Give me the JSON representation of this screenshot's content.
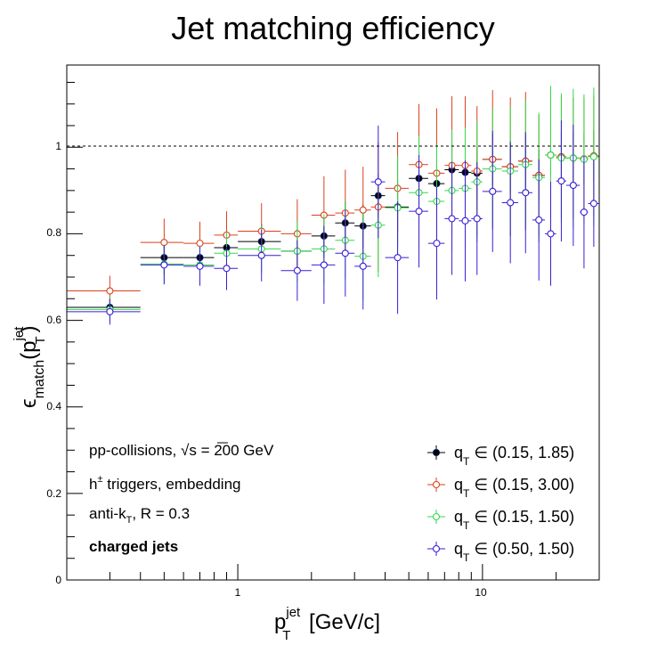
{
  "chart_data": {
    "type": "scatter",
    "title": "Jet matching efficiency",
    "x_axis": {
      "label_main": "p",
      "label_sub": "T",
      "label_sup": "jet",
      "label_unit": " [GeV/c]",
      "scale": "log",
      "range": [
        0.2,
        30
      ],
      "tick_labels": [
        "1",
        "10"
      ],
      "tick_values": [
        1,
        10
      ]
    },
    "y_axis": {
      "label_prefix": "ϵ",
      "label_sub": "match",
      "label_paren_open": "(p",
      "label_inner_sub": "T",
      "label_sup": "jet",
      "label_paren_close": ")",
      "range": [
        0,
        1.19
      ],
      "tick_labels": [
        "0",
        "0.2",
        "0.4",
        "0.6",
        "0.8",
        "1"
      ],
      "tick_values": [
        0,
        0.2,
        0.4,
        0.6,
        0.8,
        1
      ]
    },
    "reference_line_y": 1,
    "grid": false,
    "legend_position": "bottom-right",
    "annotations": {
      "line1_a": "pp-collisions, ",
      "line1_sqrt": "√s",
      "line1_b": " = 200 GeV",
      "line2_a": "h",
      "line2_sup": "±",
      "line2_b": " triggers, embedding",
      "line3_a": "anti-k",
      "line3_sub": "T",
      "line3_b": ", R = 0.3",
      "line4": "charged jets"
    },
    "series": [
      {
        "name": "(0.15, 1.85)",
        "legend_q": "q",
        "legend_sub": "T",
        "legend_in": " ∈ ",
        "color": "#000000",
        "marker": "filled-circle",
        "points": [
          {
            "x": 0.3,
            "xlo": 0.2,
            "xhi": 0.4,
            "y": 0.63,
            "err": 0.02
          },
          {
            "x": 0.5,
            "xlo": 0.4,
            "xhi": 0.6,
            "y": 0.745,
            "err": 0.04
          },
          {
            "x": 0.7,
            "xlo": 0.6,
            "xhi": 0.8,
            "y": 0.745,
            "err": 0.04
          },
          {
            "x": 0.9,
            "xlo": 0.8,
            "xhi": 1.0,
            "y": 0.768,
            "err": 0.04
          },
          {
            "x": 1.25,
            "xlo": 1.0,
            "xhi": 1.5,
            "y": 0.782,
            "err": 0.04
          },
          {
            "x": 1.75,
            "xlo": 1.5,
            "xhi": 2.0,
            "y": 0.76,
            "err": 0.05
          },
          {
            "x": 2.25,
            "xlo": 2.0,
            "xhi": 2.5,
            "y": 0.795,
            "err": 0.05
          },
          {
            "x": 2.75,
            "xlo": 2.5,
            "xhi": 3.0,
            "y": 0.825,
            "err": 0.05
          },
          {
            "x": 3.25,
            "xlo": 3.0,
            "xhi": 3.5,
            "y": 0.818,
            "err": 0.05
          },
          {
            "x": 3.75,
            "xlo": 3.5,
            "xhi": 4.0,
            "y": 0.888,
            "err": 0.05
          },
          {
            "x": 4.5,
            "xlo": 4.0,
            "xhi": 5.0,
            "y": 0.862,
            "err": 0.06
          },
          {
            "x": 5.5,
            "xlo": 5.0,
            "xhi": 6.0,
            "y": 0.928,
            "err": 0.06
          },
          {
            "x": 6.5,
            "xlo": 6.0,
            "xhi": 7.0,
            "y": 0.916,
            "err": 0.06
          },
          {
            "x": 7.5,
            "xlo": 7.0,
            "xhi": 8.0,
            "y": 0.948,
            "err": 0.06
          },
          {
            "x": 8.5,
            "xlo": 8.0,
            "xhi": 9.0,
            "y": 0.942,
            "err": 0.06
          },
          {
            "x": 9.5,
            "xlo": 9.0,
            "xhi": 10.0,
            "y": 0.94,
            "err": 0.06
          },
          {
            "x": 11.0,
            "xlo": 10.0,
            "xhi": 12.0,
            "y": 0.972,
            "err": 0.06
          },
          {
            "x": 13.0,
            "xlo": 12.0,
            "xhi": 14.0,
            "y": 0.955,
            "err": 0.06
          },
          {
            "x": 15.0,
            "xlo": 14.0,
            "xhi": 16.0,
            "y": 0.968,
            "err": 0.06
          },
          {
            "x": 17.0,
            "xlo": 16.0,
            "xhi": 18.0,
            "y": 0.935,
            "err": 0.06
          },
          {
            "x": 19.0,
            "xlo": 18.0,
            "xhi": 20.0,
            "y": 0.982,
            "err": 0.06
          },
          {
            "x": 21.0,
            "xlo": 20.0,
            "xhi": 22.0,
            "y": 0.978,
            "err": 0.06
          },
          {
            "x": 23.5,
            "xlo": 22.0,
            "xhi": 25.0,
            "y": 0.975,
            "err": 0.06
          },
          {
            "x": 26.0,
            "xlo": 25.0,
            "xhi": 27.0,
            "y": 0.973,
            "err": 0.06
          },
          {
            "x": 28.5,
            "xlo": 27.0,
            "xhi": 30.0,
            "y": 0.98,
            "err": 0.06
          }
        ]
      },
      {
        "name": "(0.15, 3.00)",
        "legend_q": "q",
        "legend_sub": "T",
        "legend_in": " ∈ ",
        "color": "#d9421e",
        "marker": "open-circle",
        "points": [
          {
            "x": 0.3,
            "xlo": 0.2,
            "xhi": 0.4,
            "y": 0.668,
            "err": 0.035
          },
          {
            "x": 0.5,
            "xlo": 0.4,
            "xhi": 0.6,
            "y": 0.78,
            "err": 0.055
          },
          {
            "x": 0.7,
            "xlo": 0.6,
            "xhi": 0.8,
            "y": 0.778,
            "err": 0.05
          },
          {
            "x": 0.9,
            "xlo": 0.8,
            "xhi": 1.0,
            "y": 0.797,
            "err": 0.055
          },
          {
            "x": 1.25,
            "xlo": 1.0,
            "xhi": 1.5,
            "y": 0.806,
            "err": 0.065
          },
          {
            "x": 1.75,
            "xlo": 1.5,
            "xhi": 2.0,
            "y": 0.8,
            "err": 0.08
          },
          {
            "x": 2.25,
            "xlo": 2.0,
            "xhi": 2.5,
            "y": 0.843,
            "err": 0.09
          },
          {
            "x": 2.75,
            "xlo": 2.5,
            "xhi": 3.0,
            "y": 0.848,
            "err": 0.1
          },
          {
            "x": 3.25,
            "xlo": 3.0,
            "xhi": 3.5,
            "y": 0.855,
            "err": 0.1
          },
          {
            "x": 3.75,
            "xlo": 3.5,
            "xhi": 4.0,
            "y": 0.862,
            "err": 0.15
          },
          {
            "x": 4.5,
            "xlo": 4.0,
            "xhi": 5.0,
            "y": 0.905,
            "err": 0.13
          },
          {
            "x": 5.5,
            "xlo": 5.0,
            "xhi": 6.0,
            "y": 0.96,
            "err": 0.14
          },
          {
            "x": 6.5,
            "xlo": 6.0,
            "xhi": 7.0,
            "y": 0.94,
            "err": 0.15
          },
          {
            "x": 7.5,
            "xlo": 7.0,
            "xhi": 8.0,
            "y": 0.958,
            "err": 0.16
          },
          {
            "x": 8.5,
            "xlo": 8.0,
            "xhi": 9.0,
            "y": 0.958,
            "err": 0.16
          },
          {
            "x": 9.5,
            "xlo": 9.0,
            "xhi": 10.0,
            "y": 0.945,
            "err": 0.15
          },
          {
            "x": 11.0,
            "xlo": 10.0,
            "xhi": 12.0,
            "y": 0.972,
            "err": 0.16
          },
          {
            "x": 13.0,
            "xlo": 12.0,
            "xhi": 14.0,
            "y": 0.955,
            "err": 0.16
          },
          {
            "x": 15.0,
            "xlo": 14.0,
            "xhi": 16.0,
            "y": 0.968,
            "err": 0.16
          },
          {
            "x": 17.0,
            "xlo": 16.0,
            "xhi": 18.0,
            "y": 0.935,
            "err": 0.14
          },
          {
            "x": 19.0,
            "xlo": 18.0,
            "xhi": 20.0,
            "y": 0.982,
            "err": 0.14
          },
          {
            "x": 21.0,
            "xlo": 20.0,
            "xhi": 22.0,
            "y": 0.978,
            "err": 0.14
          },
          {
            "x": 23.5,
            "xlo": 22.0,
            "xhi": 25.0,
            "y": 0.975,
            "err": 0.14
          },
          {
            "x": 26.0,
            "xlo": 25.0,
            "xhi": 27.0,
            "y": 0.973,
            "err": 0.14
          },
          {
            "x": 28.5,
            "xlo": 27.0,
            "xhi": 30.0,
            "y": 0.98,
            "err": 0.14
          }
        ]
      },
      {
        "name": "(0.15, 1.50)",
        "legend_q": "q",
        "legend_sub": "T",
        "legend_in": " ∈ ",
        "color": "#33d94c",
        "marker": "open-circle",
        "points": [
          {
            "x": 0.3,
            "xlo": 0.2,
            "xhi": 0.4,
            "y": 0.625,
            "err": 0.03
          },
          {
            "x": 0.5,
            "xlo": 0.4,
            "xhi": 0.6,
            "y": 0.73,
            "err": 0.045
          },
          {
            "x": 0.7,
            "xlo": 0.6,
            "xhi": 0.8,
            "y": 0.728,
            "err": 0.045
          },
          {
            "x": 0.9,
            "xlo": 0.8,
            "xhi": 1.0,
            "y": 0.755,
            "err": 0.05
          },
          {
            "x": 1.25,
            "xlo": 1.0,
            "xhi": 1.5,
            "y": 0.765,
            "err": 0.055
          },
          {
            "x": 1.75,
            "xlo": 1.5,
            "xhi": 2.0,
            "y": 0.76,
            "err": 0.07
          },
          {
            "x": 2.25,
            "xlo": 2.0,
            "xhi": 2.5,
            "y": 0.765,
            "err": 0.08
          },
          {
            "x": 2.75,
            "xlo": 2.5,
            "xhi": 3.0,
            "y": 0.785,
            "err": 0.09
          },
          {
            "x": 3.25,
            "xlo": 3.0,
            "xhi": 3.5,
            "y": 0.748,
            "err": 0.1
          },
          {
            "x": 3.75,
            "xlo": 3.5,
            "xhi": 4.0,
            "y": 0.82,
            "err": 0.12
          },
          {
            "x": 4.5,
            "xlo": 4.0,
            "xhi": 5.0,
            "y": 0.86,
            "err": 0.12
          },
          {
            "x": 5.5,
            "xlo": 5.0,
            "xhi": 6.0,
            "y": 0.895,
            "err": 0.13
          },
          {
            "x": 6.5,
            "xlo": 6.0,
            "xhi": 7.0,
            "y": 0.875,
            "err": 0.13
          },
          {
            "x": 7.5,
            "xlo": 7.0,
            "xhi": 8.0,
            "y": 0.9,
            "err": 0.14
          },
          {
            "x": 8.5,
            "xlo": 8.0,
            "xhi": 9.0,
            "y": 0.905,
            "err": 0.14
          },
          {
            "x": 9.5,
            "xlo": 9.0,
            "xhi": 10.0,
            "y": 0.92,
            "err": 0.14
          },
          {
            "x": 11.0,
            "xlo": 10.0,
            "xhi": 12.0,
            "y": 0.95,
            "err": 0.14
          },
          {
            "x": 13.0,
            "xlo": 12.0,
            "xhi": 14.0,
            "y": 0.945,
            "err": 0.15
          },
          {
            "x": 15.0,
            "xlo": 14.0,
            "xhi": 16.0,
            "y": 0.96,
            "err": 0.15
          },
          {
            "x": 17.0,
            "xlo": 16.0,
            "xhi": 18.0,
            "y": 0.93,
            "err": 0.15
          },
          {
            "x": 19.0,
            "xlo": 18.0,
            "xhi": 20.0,
            "y": 0.982,
            "err": 0.16
          },
          {
            "x": 21.0,
            "xlo": 20.0,
            "xhi": 22.0,
            "y": 0.975,
            "err": 0.15
          },
          {
            "x": 23.5,
            "xlo": 22.0,
            "xhi": 25.0,
            "y": 0.975,
            "err": 0.16
          },
          {
            "x": 26.0,
            "xlo": 25.0,
            "xhi": 27.0,
            "y": 0.972,
            "err": 0.15
          },
          {
            "x": 28.5,
            "xlo": 27.0,
            "xhi": 30.0,
            "y": 0.978,
            "err": 0.16
          }
        ]
      },
      {
        "name": "(0.50, 1.50)",
        "legend_q": "q",
        "legend_sub": "T",
        "legend_in": " ∈ ",
        "color": "#3a1fd4",
        "marker": "open-circle",
        "points": [
          {
            "x": 0.3,
            "xlo": 0.2,
            "xhi": 0.4,
            "y": 0.62,
            "err": 0.03
          },
          {
            "x": 0.5,
            "xlo": 0.4,
            "xhi": 0.6,
            "y": 0.728,
            "err": 0.045
          },
          {
            "x": 0.7,
            "xlo": 0.6,
            "xhi": 0.8,
            "y": 0.725,
            "err": 0.045
          },
          {
            "x": 0.9,
            "xlo": 0.8,
            "xhi": 1.0,
            "y": 0.72,
            "err": 0.05
          },
          {
            "x": 1.25,
            "xlo": 1.0,
            "xhi": 1.5,
            "y": 0.75,
            "err": 0.06
          },
          {
            "x": 1.75,
            "xlo": 1.5,
            "xhi": 2.0,
            "y": 0.715,
            "err": 0.07
          },
          {
            "x": 2.25,
            "xlo": 2.0,
            "xhi": 2.5,
            "y": 0.728,
            "err": 0.09
          },
          {
            "x": 2.75,
            "xlo": 2.5,
            "xhi": 3.0,
            "y": 0.755,
            "err": 0.1
          },
          {
            "x": 3.25,
            "xlo": 3.0,
            "xhi": 3.5,
            "y": 0.725,
            "err": 0.1
          },
          {
            "x": 3.75,
            "xlo": 3.5,
            "xhi": 4.0,
            "y": 0.92,
            "err": 0.13
          },
          {
            "x": 4.5,
            "xlo": 4.0,
            "xhi": 5.0,
            "y": 0.745,
            "err": 0.13
          },
          {
            "x": 5.5,
            "xlo": 5.0,
            "xhi": 6.0,
            "y": 0.852,
            "err": 0.13
          },
          {
            "x": 6.5,
            "xlo": 6.0,
            "xhi": 7.0,
            "y": 0.778,
            "err": 0.13
          },
          {
            "x": 7.5,
            "xlo": 7.0,
            "xhi": 8.0,
            "y": 0.835,
            "err": 0.13
          },
          {
            "x": 8.5,
            "xlo": 8.0,
            "xhi": 9.0,
            "y": 0.83,
            "err": 0.14
          },
          {
            "x": 9.5,
            "xlo": 9.0,
            "xhi": 10.0,
            "y": 0.835,
            "err": 0.13
          },
          {
            "x": 11.0,
            "xlo": 10.0,
            "xhi": 12.0,
            "y": 0.898,
            "err": 0.14
          },
          {
            "x": 13.0,
            "xlo": 12.0,
            "xhi": 14.0,
            "y": 0.872,
            "err": 0.14
          },
          {
            "x": 15.0,
            "xlo": 14.0,
            "xhi": 16.0,
            "y": 0.895,
            "err": 0.14
          },
          {
            "x": 17.0,
            "xlo": 16.0,
            "xhi": 18.0,
            "y": 0.832,
            "err": 0.14
          },
          {
            "x": 19.0,
            "xlo": 18.0,
            "xhi": 20.0,
            "y": 0.8,
            "err": 0.12
          },
          {
            "x": 21.0,
            "xlo": 20.0,
            "xhi": 22.0,
            "y": 0.922,
            "err": 0.14
          },
          {
            "x": 23.5,
            "xlo": 22.0,
            "xhi": 25.0,
            "y": 0.912,
            "err": 0.14
          },
          {
            "x": 26.0,
            "xlo": 25.0,
            "xhi": 27.0,
            "y": 0.85,
            "err": 0.13
          },
          {
            "x": 28.5,
            "xlo": 27.0,
            "xhi": 30.0,
            "y": 0.87,
            "err": 0.1
          }
        ]
      }
    ]
  }
}
